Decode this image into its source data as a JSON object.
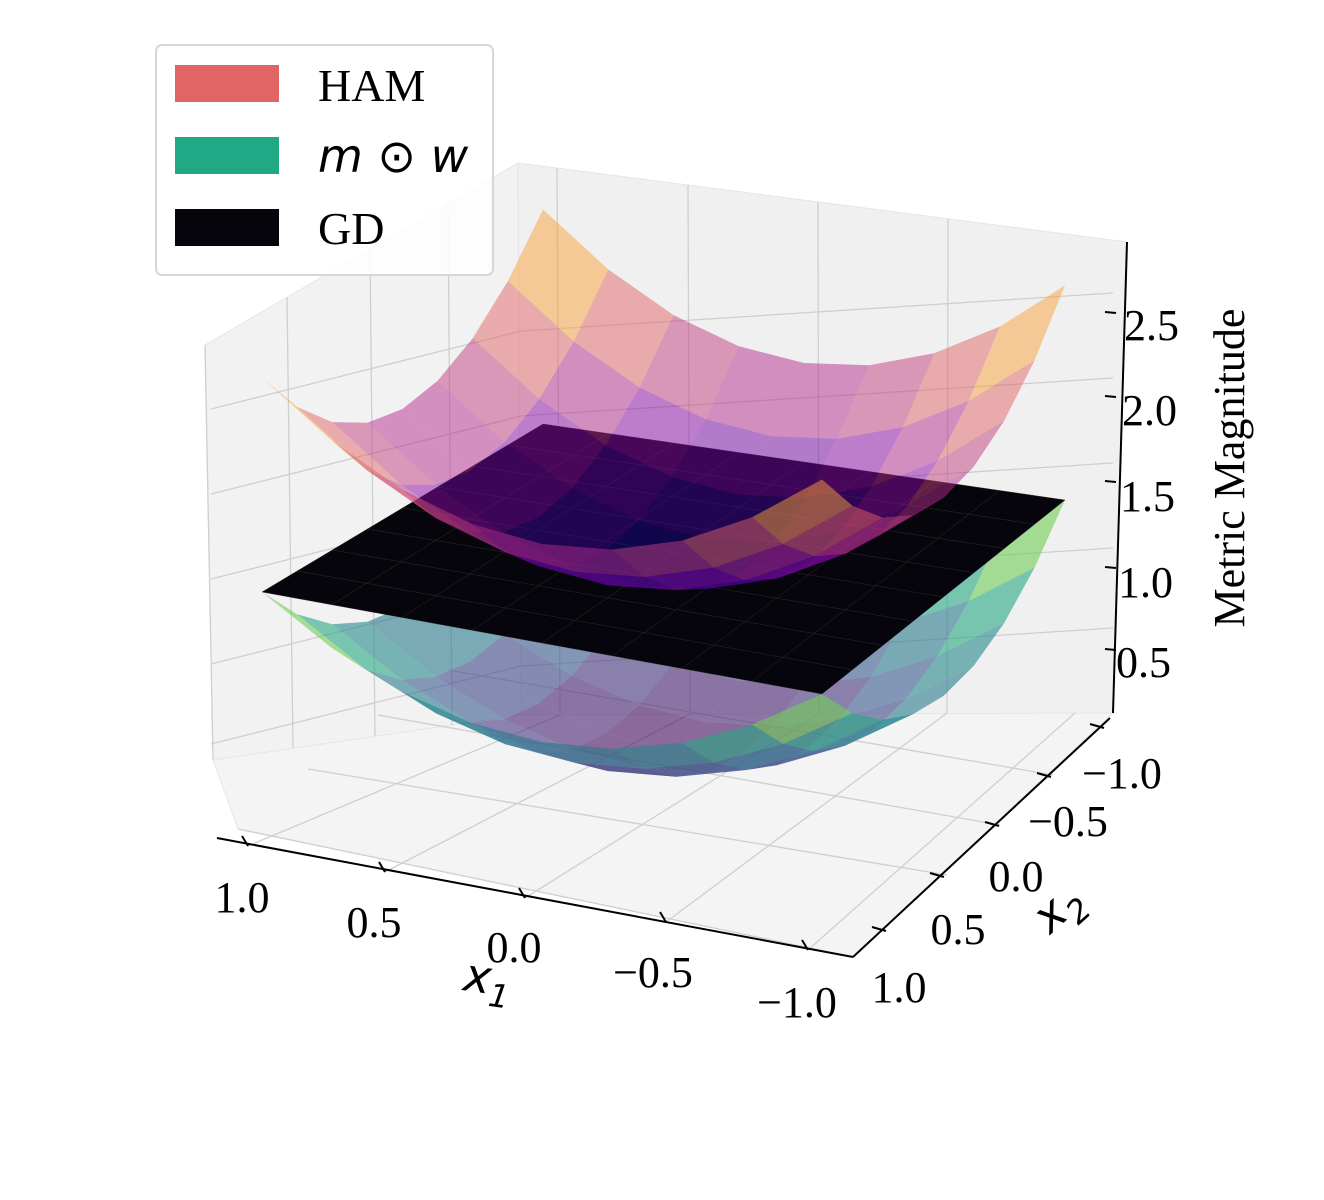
{
  "chart_data": {
    "type": "surface3d",
    "title": "",
    "xlabel": "x_1",
    "ylabel": "x_2",
    "zlabel": "Metric Magnitude",
    "xlim": [
      -1.0,
      1.0
    ],
    "ylim": [
      -1.0,
      1.0
    ],
    "zlim": [
      0.2,
      2.9
    ],
    "x_ticks": [
      "1.0",
      "0.5",
      "0.0",
      "−0.5",
      "−1.0"
    ],
    "y_ticks": [
      "−1.0",
      "−0.5",
      "0.0",
      "0.5",
      "1.0"
    ],
    "z_ticks": [
      "0.5",
      "1.0",
      "1.5",
      "2.0",
      "2.5"
    ],
    "grid": true,
    "legend_position": "top-left",
    "grid_points": [
      -1.0,
      -0.75,
      -0.5,
      -0.25,
      0.0,
      0.25,
      0.5,
      0.75,
      1.0
    ],
    "series": [
      {
        "name": "HAM",
        "legend_label": "HAM",
        "legend_color": "#e26565",
        "colormap": "plasma",
        "alpha": 0.5,
        "formula": "z = 1.4 + 0.7*(x1^2 + x2^2)",
        "z_min": 1.4,
        "z_max": 2.8
      },
      {
        "name": "m ⊙ w",
        "legend_label": "m ⊙ w",
        "legend_color": "#21a884",
        "colormap": "viridis",
        "alpha": 0.6,
        "formula": "z = 0.3 + 0.6*(x1^2 + x2^2)",
        "z_min": 0.3,
        "z_max": 1.5
      },
      {
        "name": "GD",
        "legend_label": "GD",
        "legend_color": "#06050b",
        "colormap": "black",
        "alpha": 1.0,
        "formula": "z = 1.5",
        "z_min": 1.5,
        "z_max": 1.5
      }
    ]
  }
}
